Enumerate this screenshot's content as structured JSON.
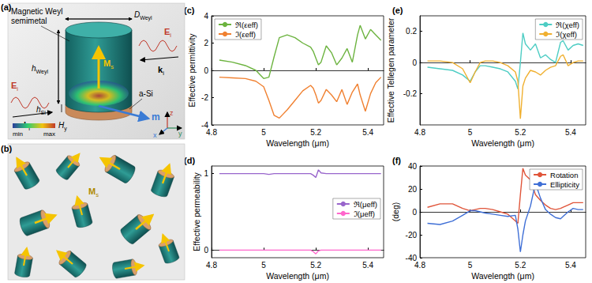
{
  "figure": {
    "illustrations": [
      {
        "label": "(a)",
        "texts": {
          "material": [
            "Magnetic Weyl",
            "semimetal"
          ],
          "diameter": {
            "text": "D",
            "sub": "Weyl"
          },
          "height": {
            "text": "h",
            "sub": "Weyl"
          },
          "si_height": {
            "text": "h",
            "sub": "Si"
          },
          "substrate": "a-Si",
          "magnetization": {
            "text": "M",
            "sub": "s"
          },
          "field_left": {
            "text": "E",
            "sub": "i"
          },
          "field_right": {
            "text": "E",
            "sub": "i"
          },
          "wavevector_left": {
            "text": "k",
            "sub": "i"
          },
          "wavevector_right": {
            "text": "k",
            "sub": "i"
          },
          "moment": "m",
          "colorbar_title": {
            "text": "H",
            "sub": "y"
          },
          "colorbar_min": "min",
          "colorbar_max": "max",
          "axes": [
            "x",
            "y",
            "z"
          ]
        }
      },
      {
        "label": "(b)",
        "texts": {
          "magnetization": {
            "text": "M",
            "sub": "s"
          }
        }
      }
    ]
  },
  "chart_data": [
    {
      "type": "line",
      "title": "(c)",
      "xlabel": "Wavelength (μm)",
      "ylabel": "Effective permittivity",
      "xlim": [
        4.8,
        5.46
      ],
      "xticks": [
        4.8,
        5,
        5.2,
        5.4
      ],
      "ylim": [
        -4,
        4
      ],
      "yticks": [
        -4,
        -2,
        0,
        2,
        4
      ],
      "legend": "upper left",
      "x": [
        4.83,
        4.88,
        4.93,
        4.97,
        5.0,
        5.02,
        5.04,
        5.06,
        5.09,
        5.12,
        5.15,
        5.18,
        5.19,
        5.2,
        5.21,
        5.22,
        5.24,
        5.26,
        5.28,
        5.3,
        5.32,
        5.34,
        5.36,
        5.37,
        5.39,
        5.41,
        5.43,
        5.45
      ],
      "series": [
        {
          "name": "ℜ(εeff)",
          "color": "#6cb33f",
          "values": [
            0.75,
            0.6,
            0.35,
            0.0,
            -0.6,
            -0.5,
            1.0,
            2.4,
            2.6,
            2.4,
            2.0,
            1.7,
            1.4,
            0.9,
            0.4,
            0.6,
            1.8,
            1.3,
            0.4,
            0.9,
            1.6,
            0.6,
            2.6,
            3.3,
            2.3,
            3.0,
            2.6,
            2.2
          ]
        },
        {
          "name": "ℑ(εeff)",
          "color": "#f08030",
          "values": [
            -0.5,
            -0.55,
            -0.6,
            -0.8,
            -1.2,
            -2.2,
            -3.3,
            -3.5,
            -2.9,
            -2.2,
            -1.5,
            -1.1,
            -1.3,
            -1.8,
            -2.4,
            -2.2,
            -1.4,
            -1.8,
            -2.3,
            -1.4,
            -2.5,
            -1.6,
            -1.0,
            -1.8,
            -3.0,
            -1.7,
            -0.9,
            -0.5
          ]
        }
      ]
    },
    {
      "type": "line",
      "title": "(d)",
      "xlabel": "Wavelength (μm)",
      "ylabel": "Effective permeability",
      "xlim": [
        4.8,
        5.46
      ],
      "xticks": [
        4.8,
        5,
        5.2,
        5.4
      ],
      "ylim": [
        -0.1,
        1.1
      ],
      "yticks": [
        0,
        1
      ],
      "legend": "right",
      "x": [
        4.83,
        4.88,
        4.93,
        4.97,
        5.0,
        5.02,
        5.04,
        5.06,
        5.09,
        5.12,
        5.15,
        5.18,
        5.19,
        5.2,
        5.21,
        5.22,
        5.24,
        5.26,
        5.28,
        5.3,
        5.32,
        5.34,
        5.36,
        5.37,
        5.39,
        5.41,
        5.43,
        5.45
      ],
      "series": [
        {
          "name": "ℜ(μeff)",
          "color": "#9966cc",
          "values": [
            1.0,
            1.0,
            1.0,
            1.0,
            1.0,
            0.99,
            1.0,
            1.0,
            1.0,
            1.0,
            1.0,
            1.0,
            0.98,
            0.95,
            1.05,
            1.01,
            1.0,
            1.0,
            1.0,
            1.0,
            1.0,
            1.0,
            1.0,
            1.0,
            1.0,
            1.0,
            1.0,
            1.0
          ]
        },
        {
          "name": "ℑ(μeff)",
          "color": "#ff66cc",
          "values": [
            0.0,
            0.0,
            0.0,
            0.0,
            0.0,
            0.0,
            0.0,
            0.0,
            0.0,
            0.0,
            0.0,
            0.0,
            -0.02,
            -0.05,
            -0.01,
            0.0,
            0.0,
            0.0,
            0.0,
            0.0,
            0.0,
            0.0,
            0.0,
            0.0,
            0.0,
            0.0,
            0.0,
            0.0
          ]
        }
      ]
    },
    {
      "type": "line",
      "title": "(e)",
      "xlabel": "Wavelength (μm)",
      "ylabel": "Effective Tellegen parameter",
      "xlim": [
        4.8,
        5.46
      ],
      "xticks": [
        4.8,
        5,
        5.2,
        5.4
      ],
      "ylim": [
        -0.4,
        0.3
      ],
      "yticks": [
        -0.2,
        0,
        0.2
      ],
      "legend": "upper right",
      "x": [
        4.83,
        4.88,
        4.93,
        4.97,
        5.0,
        5.02,
        5.04,
        5.06,
        5.09,
        5.12,
        5.15,
        5.18,
        5.19,
        5.2,
        5.21,
        5.22,
        5.24,
        5.26,
        5.28,
        5.3,
        5.32,
        5.34,
        5.36,
        5.37,
        5.39,
        5.41,
        5.43,
        5.45
      ],
      "series": [
        {
          "name": "ℜ(χeff)",
          "color": "#4ecdc4",
          "values": [
            -0.03,
            -0.04,
            -0.05,
            -0.08,
            -0.12,
            -0.06,
            -0.02,
            -0.02,
            -0.03,
            -0.04,
            -0.06,
            -0.12,
            -0.17,
            0.0,
            0.19,
            0.12,
            0.08,
            0.12,
            0.03,
            0.05,
            0.02,
            0.0,
            0.13,
            0.14,
            0.08,
            0.11,
            0.12,
            0.11
          ]
        },
        {
          "name": "ℑ(χeff)",
          "color": "#f0b030",
          "values": [
            0.01,
            0.01,
            0.0,
            -0.04,
            -0.13,
            -0.06,
            0.0,
            0.01,
            0.01,
            0.0,
            -0.02,
            -0.06,
            -0.12,
            -0.36,
            -0.15,
            -0.1,
            -0.05,
            -0.06,
            -0.08,
            -0.05,
            -0.03,
            -0.02,
            0.04,
            0.05,
            -0.02,
            0.0,
            0.01,
            0.01
          ]
        }
      ]
    },
    {
      "type": "line",
      "title": "(f)",
      "xlabel": "Wavelength (μm)",
      "ylabel": "(deg)",
      "xlim": [
        4.8,
        5.46
      ],
      "xticks": [
        4.8,
        5,
        5.2,
        5.4
      ],
      "ylim": [
        -40,
        40
      ],
      "yticks": [
        -40,
        -20,
        0,
        20,
        40
      ],
      "legend": "upper right",
      "x": [
        4.83,
        4.88,
        4.93,
        4.97,
        5.0,
        5.02,
        5.04,
        5.06,
        5.09,
        5.12,
        5.15,
        5.18,
        5.19,
        5.2,
        5.21,
        5.22,
        5.24,
        5.26,
        5.28,
        5.3,
        5.32,
        5.34,
        5.36,
        5.37,
        5.39,
        5.41,
        5.43,
        5.45
      ],
      "series": [
        {
          "name": "Rotation",
          "color": "#e0553a",
          "values": [
            4,
            7,
            7,
            3,
            1,
            2,
            3,
            3,
            2,
            0,
            -2,
            -8,
            -10,
            15,
            38,
            32,
            28,
            15,
            10,
            6,
            3,
            2,
            3,
            4,
            6,
            8,
            8,
            8
          ]
        },
        {
          "name": "Ellipticity",
          "color": "#3f6fd6",
          "values": [
            -10,
            -11,
            -8,
            -3,
            1,
            1,
            0,
            -1,
            -2,
            -3,
            -4,
            -3,
            -15,
            -35,
            -20,
            -8,
            5,
            25,
            12,
            2,
            -2,
            -5,
            -6,
            -4,
            0,
            3,
            2,
            2
          ]
        }
      ]
    }
  ]
}
